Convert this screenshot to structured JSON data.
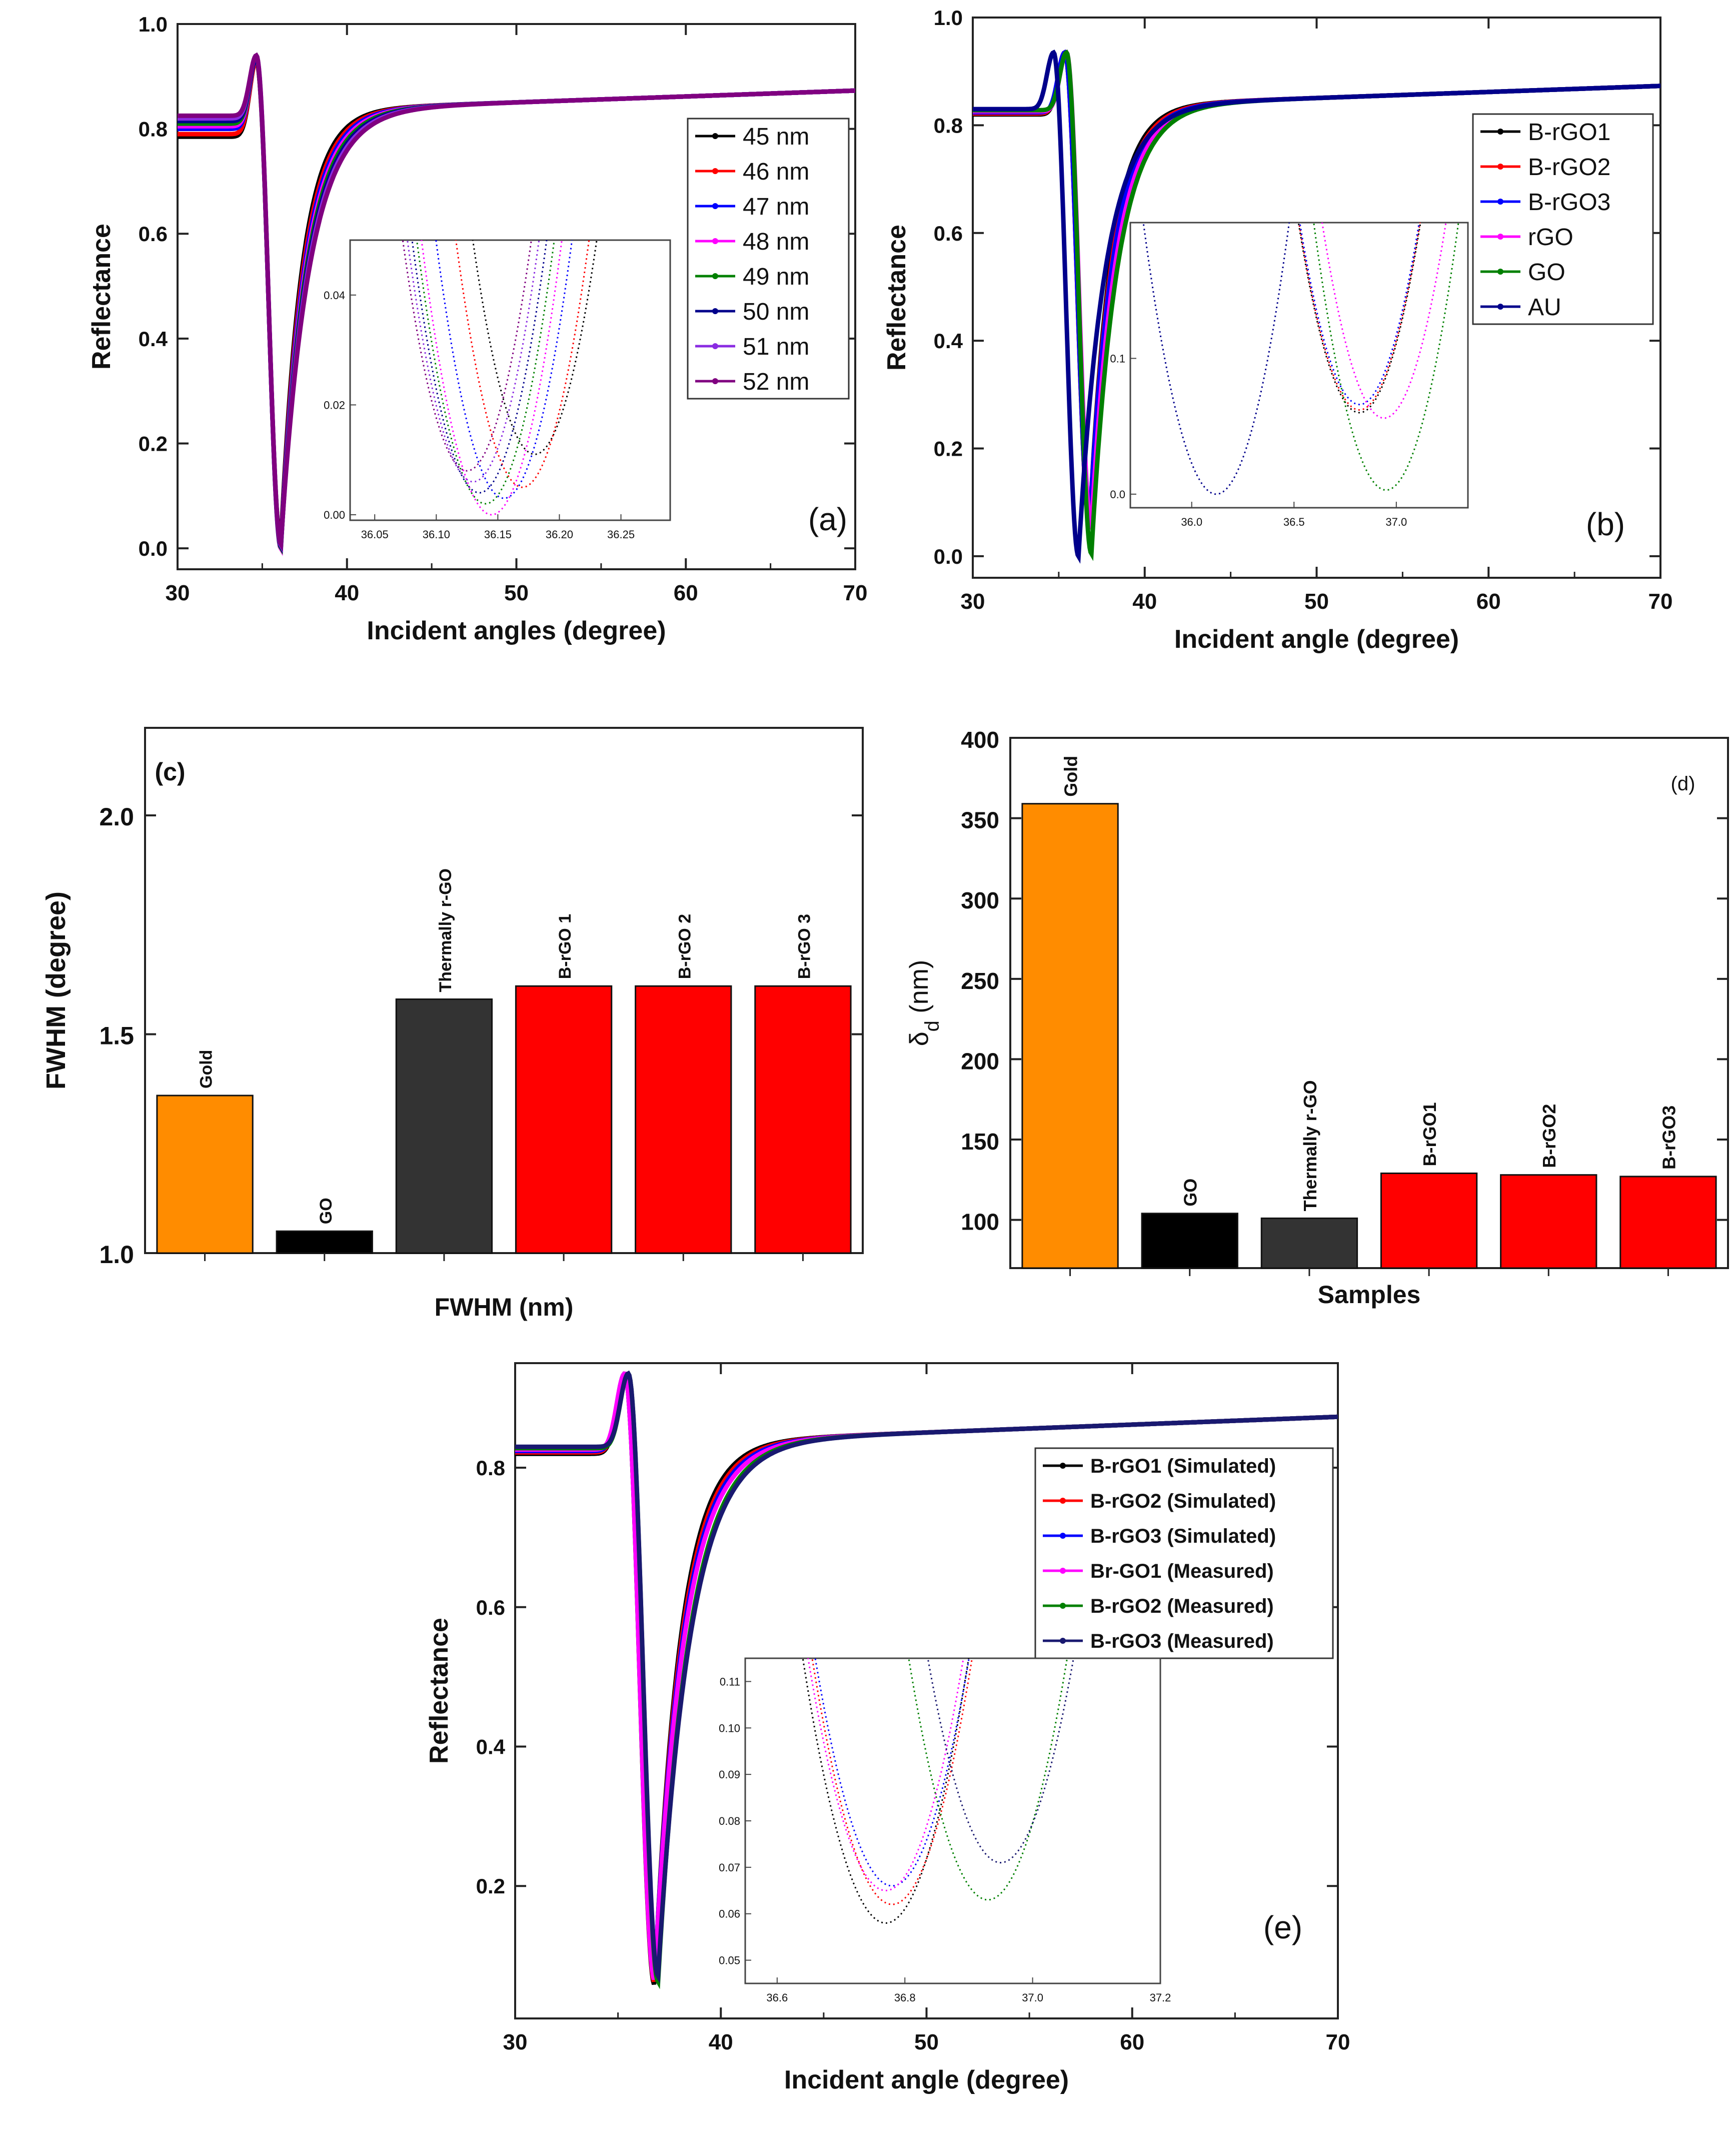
{
  "chart_data": [
    {
      "panel": "(a)",
      "type": "line",
      "xlabel": "Incident angles (degree)",
      "ylabel": "Reflectance",
      "xlim": [
        30,
        70
      ],
      "ylim": [
        -0.04,
        1.0
      ],
      "xticks": [
        30,
        40,
        50,
        60,
        70
      ],
      "yticks": [
        0.0,
        0.2,
        0.4,
        0.6,
        0.8,
        1.0
      ],
      "legend_position": "right-upper",
      "series": [
        {
          "name": "45 nm",
          "color": "#000000",
          "start": 0.785,
          "peak": 0.93,
          "min_angle": 36.1,
          "min": 0.011
        },
        {
          "name": "46 nm",
          "color": "#ff0000",
          "start": 0.79,
          "peak": 0.93,
          "min_angle": 36.1,
          "min": 0.005
        },
        {
          "name": "47 nm",
          "color": "#0000ff",
          "start": 0.8,
          "peak": 0.935,
          "min_angle": 36.1,
          "min": 0.003
        },
        {
          "name": "48 nm",
          "color": "#ff00ff",
          "start": 0.805,
          "peak": 0.935,
          "min_angle": 36.1,
          "min": 0.0
        },
        {
          "name": "49 nm",
          "color": "#008000",
          "start": 0.81,
          "peak": 0.935,
          "min_angle": 36.1,
          "min": 0.002
        },
        {
          "name": "50 nm",
          "color": "#00008b",
          "start": 0.815,
          "peak": 0.935,
          "min_angle": 36.1,
          "min": 0.004
        },
        {
          "name": "51 nm",
          "color": "#8a2be2",
          "start": 0.82,
          "peak": 0.94,
          "min_angle": 36.1,
          "min": 0.006
        },
        {
          "name": "52 nm",
          "color": "#800080",
          "start": 0.825,
          "peak": 0.94,
          "min_angle": 36.1,
          "min": 0.008
        }
      ],
      "inset": {
        "xlim": [
          36.03,
          36.29
        ],
        "ylim": [
          -0.001,
          0.05
        ],
        "xticks": [
          "36.05",
          "36.10",
          "36.15",
          "36.20",
          "36.25"
        ],
        "yticks": [
          "0.00",
          "0.02",
          "0.04"
        ],
        "curves": [
          {
            "name": "45 nm",
            "color": "#000000",
            "x0": 36.18,
            "y0": 0.011
          },
          {
            "name": "46 nm",
            "color": "#ff0000",
            "x0": 36.17,
            "y0": 0.005
          },
          {
            "name": "47 nm",
            "color": "#0000ff",
            "x0": 36.155,
            "y0": 0.003
          },
          {
            "name": "48 nm",
            "color": "#ff00ff",
            "x0": 36.145,
            "y0": 0.0
          },
          {
            "name": "49 nm",
            "color": "#008000",
            "x0": 36.14,
            "y0": 0.002
          },
          {
            "name": "50 nm",
            "color": "#00008b",
            "x0": 36.135,
            "y0": 0.004
          },
          {
            "name": "51 nm",
            "color": "#8a2be2",
            "x0": 36.13,
            "y0": 0.006
          },
          {
            "name": "52 nm",
            "color": "#800080",
            "x0": 36.125,
            "y0": 0.008
          }
        ]
      }
    },
    {
      "panel": "(b)",
      "type": "line",
      "xlabel": "Incident angle (degree)",
      "ylabel": "Reflectance",
      "xlim": [
        30,
        70
      ],
      "ylim": [
        -0.04,
        1.0
      ],
      "xticks": [
        30,
        40,
        50,
        60,
        70
      ],
      "yticks": [
        0.0,
        0.2,
        0.4,
        0.6,
        0.8,
        1.0
      ],
      "legend_position": "right-upper",
      "series": [
        {
          "name": "B-rGO1",
          "color": "#000000",
          "min_angle": 36.8,
          "min": 0.06
        },
        {
          "name": "B-rGO2",
          "color": "#ff0000",
          "min_angle": 36.8,
          "min": 0.06
        },
        {
          "name": "B-rGO3",
          "color": "#0000ff",
          "min_angle": 36.8,
          "min": 0.065
        },
        {
          "name": "rGO",
          "color": "#ff00ff",
          "min_angle": 36.9,
          "min": 0.055
        },
        {
          "name": "GO",
          "color": "#008000",
          "min_angle": 36.9,
          "min": 0.005
        },
        {
          "name": "AU",
          "color": "#00008b",
          "min_angle": 36.15,
          "min": 0.0
        }
      ],
      "inset": {
        "xlim": [
          35.7,
          37.35
        ],
        "ylim": [
          -0.01,
          0.2
        ],
        "xticks": [
          "36.0",
          "36.5",
          "37.0"
        ],
        "yticks": [
          "0.0",
          "0.1"
        ],
        "curves": [
          {
            "name": "AU",
            "color": "#00008b",
            "x0": 36.12,
            "y0": 0.0
          },
          {
            "name": "B-rGO1",
            "color": "#000000",
            "x0": 36.82,
            "y0": 0.06
          },
          {
            "name": "B-rGO2",
            "color": "#ff0000",
            "x0": 36.82,
            "y0": 0.062
          },
          {
            "name": "B-rGO3",
            "color": "#0000ff",
            "x0": 36.82,
            "y0": 0.066
          },
          {
            "name": "rGO",
            "color": "#ff00ff",
            "x0": 36.94,
            "y0": 0.056
          },
          {
            "name": "GO",
            "color": "#008000",
            "x0": 36.95,
            "y0": 0.003
          }
        ]
      }
    },
    {
      "panel": "(c)",
      "type": "bar",
      "categories": [
        "Gold",
        "GO",
        "Thermally r-GO",
        "B-rGO 1",
        "B-rGO 2",
        "B-rGO 3"
      ],
      "values": [
        1.36,
        1.05,
        1.58,
        1.61,
        1.61,
        1.61
      ],
      "colors": [
        "#ff8c00",
        "#000000",
        "#333333",
        "#ff0000",
        "#ff0000",
        "#ff0000"
      ],
      "xlabel": "FWHM (nm)",
      "ylabel": "FWHM (degree)",
      "ylim": [
        1.0,
        2.2
      ],
      "yticks": [
        "1.0",
        "1.5",
        "2.0"
      ]
    },
    {
      "panel": "(d)",
      "type": "bar",
      "categories": [
        "Gold",
        "GO",
        "Thermally r-GO",
        "B-rGO1",
        "B-rGO2",
        "B-rGO3"
      ],
      "values": [
        359,
        104,
        101,
        129,
        128,
        127
      ],
      "colors": [
        "#ff8c00",
        "#000000",
        "#333333",
        "#ff0000",
        "#ff0000",
        "#ff0000"
      ],
      "xlabel": "Samples",
      "ylabel": "δd (nm)",
      "ylabel_main": "δ",
      "ylabel_sub": "d",
      "ylabel_unit": " (nm)",
      "ylim": [
        70,
        400
      ],
      "yticks": [
        "100",
        "150",
        "200",
        "250",
        "300",
        "350",
        "400"
      ]
    },
    {
      "panel": "(e)",
      "type": "line",
      "xlabel": "Incident angle (degree)",
      "ylabel": "Reflectance",
      "xlim": [
        30,
        70
      ],
      "ylim": [
        0.01,
        0.95
      ],
      "xticks": [
        30,
        40,
        50,
        60,
        70
      ],
      "yticks": [
        0.2,
        0.4,
        0.6,
        0.8
      ],
      "legend_position": "right-upper",
      "series": [
        {
          "name": "B-rGO1 (Simulated)",
          "color": "#000000",
          "min_angle": 36.78,
          "min": 0.058
        },
        {
          "name": "B-rGO2 (Simulated)",
          "color": "#ff0000",
          "min_angle": 36.78,
          "min": 0.062
        },
        {
          "name": "B-rGO3 (Simulated)",
          "color": "#0000ff",
          "min_angle": 36.78,
          "min": 0.066
        },
        {
          "name": "Br-GO1 (Measured)",
          "color": "#ff00ff",
          "min_angle": 36.78,
          "min": 0.065
        },
        {
          "name": "B-rGO2 (Measured)",
          "color": "#008000",
          "min_angle": 36.95,
          "min": 0.063
        },
        {
          "name": "B-rGO3 (Measured)",
          "color": "#191970",
          "min_angle": 36.95,
          "min": 0.071
        }
      ],
      "inset": {
        "xlim": [
          36.55,
          37.2
        ],
        "ylim": [
          0.045,
          0.115
        ],
        "xticks": [
          "36.6",
          "36.8",
          "37.0",
          "37.2"
        ],
        "yticks": [
          "0.05",
          "0.06",
          "0.07",
          "0.08",
          "0.09",
          "0.10",
          "0.11"
        ],
        "curves": [
          {
            "name": "B-rGO1 (Simulated)",
            "color": "#000000",
            "x0": 36.77,
            "y0": 0.058
          },
          {
            "name": "B-rGO2 (Simulated)",
            "color": "#ff0000",
            "x0": 36.78,
            "y0": 0.062
          },
          {
            "name": "B-rGO3 (Simulated)",
            "color": "#0000ff",
            "x0": 36.78,
            "y0": 0.066
          },
          {
            "name": "Br-GO1 (Measured)",
            "color": "#ff00ff",
            "x0": 36.77,
            "y0": 0.065
          },
          {
            "name": "B-rGO2 (Measured)",
            "color": "#008000",
            "x0": 36.93,
            "y0": 0.063
          },
          {
            "name": "B-rGO3 (Measured)",
            "color": "#191970",
            "x0": 36.95,
            "y0": 0.071
          }
        ]
      }
    }
  ]
}
